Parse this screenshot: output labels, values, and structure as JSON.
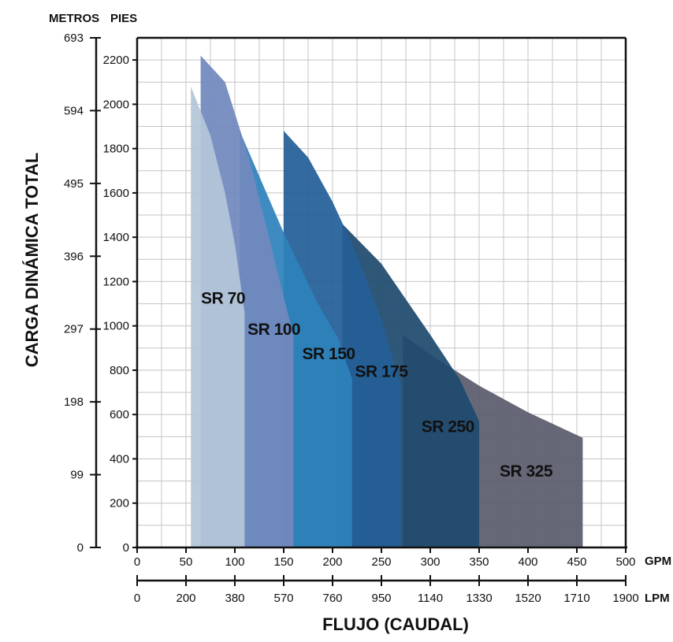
{
  "chart_data": {
    "type": "area",
    "xlabel": "FLUJO (CAUDAL)",
    "ylabel": "CARGA DINÁMICA TOTAL",
    "x_units": [
      "GPM",
      "LPM"
    ],
    "y_units": [
      "METROS",
      "PIES"
    ],
    "x_primary": {
      "unit": "GPM",
      "range": [
        0,
        500
      ],
      "ticks": [
        0,
        50,
        100,
        150,
        200,
        250,
        300,
        350,
        400,
        450,
        500
      ]
    },
    "x_secondary": {
      "unit": "LPM",
      "ticks": [
        "0",
        "200",
        "380",
        "570",
        "760",
        "950",
        "1140",
        "1330",
        "1520",
        "1710",
        "1900"
      ]
    },
    "y_primary": {
      "unit": "PIES",
      "range": [
        0,
        2300
      ],
      "ticks": [
        0,
        200,
        400,
        600,
        800,
        1000,
        1200,
        1400,
        1600,
        1800,
        2000,
        2200
      ]
    },
    "y_secondary": {
      "unit": "METROS",
      "ticks": [
        "0",
        "99",
        "198",
        "297",
        "396",
        "495",
        "594",
        "693"
      ]
    },
    "grid": true,
    "series": [
      {
        "name": "SR 325",
        "color": "#5a5d6e",
        "x_start": 272,
        "x_end": 456,
        "curve": [
          [
            272,
            960
          ],
          [
            300,
            870
          ],
          [
            350,
            730
          ],
          [
            400,
            610
          ],
          [
            456,
            495
          ]
        ]
      },
      {
        "name": "SR 250",
        "color": "#1f4a6e",
        "x_start": 210,
        "x_end": 350,
        "curve": [
          [
            210,
            1460
          ],
          [
            250,
            1280
          ],
          [
            300,
            960
          ],
          [
            330,
            760
          ],
          [
            350,
            570
          ]
        ]
      },
      {
        "name": "SR 175",
        "color": "#235f98",
        "x_start": 150,
        "x_end": 270,
        "curve": [
          [
            150,
            1880
          ],
          [
            175,
            1760
          ],
          [
            200,
            1560
          ],
          [
            225,
            1320
          ],
          [
            250,
            1030
          ],
          [
            270,
            730
          ]
        ]
      },
      {
        "name": "SR 150",
        "color": "#2e82bb",
        "x_start": 105,
        "x_end": 220,
        "curve": [
          [
            105,
            1880
          ],
          [
            150,
            1420
          ],
          [
            185,
            1100
          ],
          [
            205,
            950
          ],
          [
            220,
            760
          ]
        ]
      },
      {
        "name": "SR 100",
        "color": "#7189bd",
        "x_start": 65,
        "x_end": 160,
        "curve": [
          [
            65,
            2220
          ],
          [
            90,
            2100
          ],
          [
            115,
            1750
          ],
          [
            135,
            1400
          ],
          [
            150,
            1130
          ],
          [
            160,
            960
          ]
        ]
      },
      {
        "name": "SR 70",
        "color": "#b4c6d8",
        "x_start": 55,
        "x_end": 110,
        "curve": [
          [
            55,
            2080
          ],
          [
            75,
            1860
          ],
          [
            90,
            1600
          ],
          [
            100,
            1370
          ],
          [
            110,
            1060
          ]
        ]
      }
    ]
  }
}
